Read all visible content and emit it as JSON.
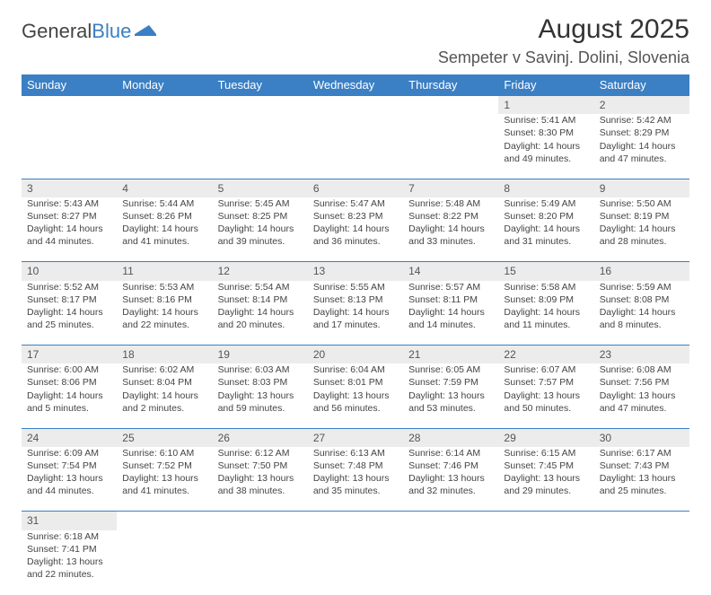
{
  "logo": {
    "part1": "General",
    "part2": "Blue"
  },
  "title": "August 2025",
  "location": "Sempeter v Savinj. Dolini, Slovenia",
  "weekday_headers": [
    "Sunday",
    "Monday",
    "Tuesday",
    "Wednesday",
    "Thursday",
    "Friday",
    "Saturday"
  ],
  "colors": {
    "header_bg": "#3b7fc4",
    "header_text": "#ffffff",
    "daynum_bg": "#ececec"
  },
  "weeks": [
    {
      "nums": [
        "",
        "",
        "",
        "",
        "",
        "1",
        "2"
      ],
      "cells": [
        null,
        null,
        null,
        null,
        null,
        {
          "sunrise": "Sunrise: 5:41 AM",
          "sunset": "Sunset: 8:30 PM",
          "day1": "Daylight: 14 hours",
          "day2": "and 49 minutes."
        },
        {
          "sunrise": "Sunrise: 5:42 AM",
          "sunset": "Sunset: 8:29 PM",
          "day1": "Daylight: 14 hours",
          "day2": "and 47 minutes."
        }
      ]
    },
    {
      "nums": [
        "3",
        "4",
        "5",
        "6",
        "7",
        "8",
        "9"
      ],
      "cells": [
        {
          "sunrise": "Sunrise: 5:43 AM",
          "sunset": "Sunset: 8:27 PM",
          "day1": "Daylight: 14 hours",
          "day2": "and 44 minutes."
        },
        {
          "sunrise": "Sunrise: 5:44 AM",
          "sunset": "Sunset: 8:26 PM",
          "day1": "Daylight: 14 hours",
          "day2": "and 41 minutes."
        },
        {
          "sunrise": "Sunrise: 5:45 AM",
          "sunset": "Sunset: 8:25 PM",
          "day1": "Daylight: 14 hours",
          "day2": "and 39 minutes."
        },
        {
          "sunrise": "Sunrise: 5:47 AM",
          "sunset": "Sunset: 8:23 PM",
          "day1": "Daylight: 14 hours",
          "day2": "and 36 minutes."
        },
        {
          "sunrise": "Sunrise: 5:48 AM",
          "sunset": "Sunset: 8:22 PM",
          "day1": "Daylight: 14 hours",
          "day2": "and 33 minutes."
        },
        {
          "sunrise": "Sunrise: 5:49 AM",
          "sunset": "Sunset: 8:20 PM",
          "day1": "Daylight: 14 hours",
          "day2": "and 31 minutes."
        },
        {
          "sunrise": "Sunrise: 5:50 AM",
          "sunset": "Sunset: 8:19 PM",
          "day1": "Daylight: 14 hours",
          "day2": "and 28 minutes."
        }
      ]
    },
    {
      "nums": [
        "10",
        "11",
        "12",
        "13",
        "14",
        "15",
        "16"
      ],
      "cells": [
        {
          "sunrise": "Sunrise: 5:52 AM",
          "sunset": "Sunset: 8:17 PM",
          "day1": "Daylight: 14 hours",
          "day2": "and 25 minutes."
        },
        {
          "sunrise": "Sunrise: 5:53 AM",
          "sunset": "Sunset: 8:16 PM",
          "day1": "Daylight: 14 hours",
          "day2": "and 22 minutes."
        },
        {
          "sunrise": "Sunrise: 5:54 AM",
          "sunset": "Sunset: 8:14 PM",
          "day1": "Daylight: 14 hours",
          "day2": "and 20 minutes."
        },
        {
          "sunrise": "Sunrise: 5:55 AM",
          "sunset": "Sunset: 8:13 PM",
          "day1": "Daylight: 14 hours",
          "day2": "and 17 minutes."
        },
        {
          "sunrise": "Sunrise: 5:57 AM",
          "sunset": "Sunset: 8:11 PM",
          "day1": "Daylight: 14 hours",
          "day2": "and 14 minutes."
        },
        {
          "sunrise": "Sunrise: 5:58 AM",
          "sunset": "Sunset: 8:09 PM",
          "day1": "Daylight: 14 hours",
          "day2": "and 11 minutes."
        },
        {
          "sunrise": "Sunrise: 5:59 AM",
          "sunset": "Sunset: 8:08 PM",
          "day1": "Daylight: 14 hours",
          "day2": "and 8 minutes."
        }
      ]
    },
    {
      "nums": [
        "17",
        "18",
        "19",
        "20",
        "21",
        "22",
        "23"
      ],
      "cells": [
        {
          "sunrise": "Sunrise: 6:00 AM",
          "sunset": "Sunset: 8:06 PM",
          "day1": "Daylight: 14 hours",
          "day2": "and 5 minutes."
        },
        {
          "sunrise": "Sunrise: 6:02 AM",
          "sunset": "Sunset: 8:04 PM",
          "day1": "Daylight: 14 hours",
          "day2": "and 2 minutes."
        },
        {
          "sunrise": "Sunrise: 6:03 AM",
          "sunset": "Sunset: 8:03 PM",
          "day1": "Daylight: 13 hours",
          "day2": "and 59 minutes."
        },
        {
          "sunrise": "Sunrise: 6:04 AM",
          "sunset": "Sunset: 8:01 PM",
          "day1": "Daylight: 13 hours",
          "day2": "and 56 minutes."
        },
        {
          "sunrise": "Sunrise: 6:05 AM",
          "sunset": "Sunset: 7:59 PM",
          "day1": "Daylight: 13 hours",
          "day2": "and 53 minutes."
        },
        {
          "sunrise": "Sunrise: 6:07 AM",
          "sunset": "Sunset: 7:57 PM",
          "day1": "Daylight: 13 hours",
          "day2": "and 50 minutes."
        },
        {
          "sunrise": "Sunrise: 6:08 AM",
          "sunset": "Sunset: 7:56 PM",
          "day1": "Daylight: 13 hours",
          "day2": "and 47 minutes."
        }
      ]
    },
    {
      "nums": [
        "24",
        "25",
        "26",
        "27",
        "28",
        "29",
        "30"
      ],
      "cells": [
        {
          "sunrise": "Sunrise: 6:09 AM",
          "sunset": "Sunset: 7:54 PM",
          "day1": "Daylight: 13 hours",
          "day2": "and 44 minutes."
        },
        {
          "sunrise": "Sunrise: 6:10 AM",
          "sunset": "Sunset: 7:52 PM",
          "day1": "Daylight: 13 hours",
          "day2": "and 41 minutes."
        },
        {
          "sunrise": "Sunrise: 6:12 AM",
          "sunset": "Sunset: 7:50 PM",
          "day1": "Daylight: 13 hours",
          "day2": "and 38 minutes."
        },
        {
          "sunrise": "Sunrise: 6:13 AM",
          "sunset": "Sunset: 7:48 PM",
          "day1": "Daylight: 13 hours",
          "day2": "and 35 minutes."
        },
        {
          "sunrise": "Sunrise: 6:14 AM",
          "sunset": "Sunset: 7:46 PM",
          "day1": "Daylight: 13 hours",
          "day2": "and 32 minutes."
        },
        {
          "sunrise": "Sunrise: 6:15 AM",
          "sunset": "Sunset: 7:45 PM",
          "day1": "Daylight: 13 hours",
          "day2": "and 29 minutes."
        },
        {
          "sunrise": "Sunrise: 6:17 AM",
          "sunset": "Sunset: 7:43 PM",
          "day1": "Daylight: 13 hours",
          "day2": "and 25 minutes."
        }
      ]
    },
    {
      "nums": [
        "31",
        "",
        "",
        "",
        "",
        "",
        ""
      ],
      "cells": [
        {
          "sunrise": "Sunrise: 6:18 AM",
          "sunset": "Sunset: 7:41 PM",
          "day1": "Daylight: 13 hours",
          "day2": "and 22 minutes."
        },
        null,
        null,
        null,
        null,
        null,
        null
      ]
    }
  ]
}
